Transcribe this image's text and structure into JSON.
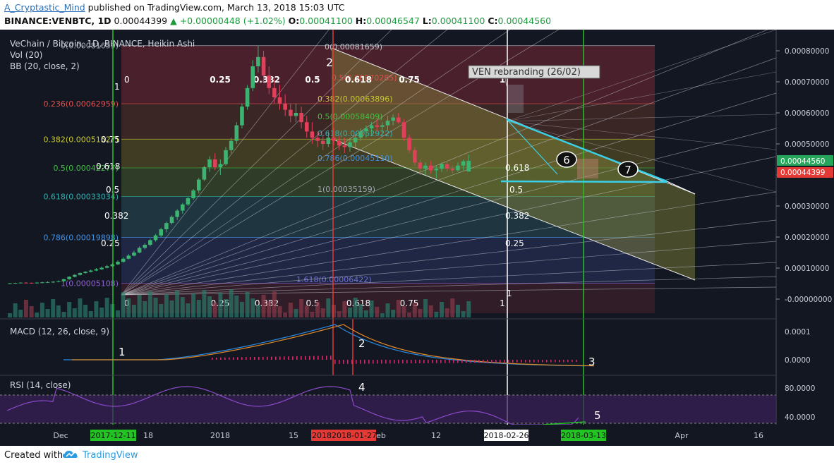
{
  "header": {
    "author": "A_Cryptastic_Mind",
    "published": "published on TradingView.com, March 13, 2018 15:03 UTC",
    "symbol_line": "BINANCE:VENBTC, 1D",
    "last": "0.00044399",
    "change": "+0.00000448 (+1.02%)",
    "o_label": "O:",
    "o": "0.00041100",
    "h_label": "H:",
    "h": "0.00046547",
    "l_label": "L:",
    "l": "0.00041100",
    "c_label": "C:",
    "c": "0.00044560"
  },
  "legend": {
    "title": "VeChain / Bitcoin, 1D, BINANCE, Heikin Ashi",
    "vol": "Vol (20)",
    "bb": "BB (20, close, 2)"
  },
  "price_axis": [
    "0.00080000",
    "0.00070000",
    "0.00060000",
    "0.00050000",
    "0.00040000",
    "0.00030000",
    "0.00020000",
    "0.00010000",
    "-0.00000000"
  ],
  "price_badges": {
    "close": "0.00044560",
    "last": "0.00044399"
  },
  "fib_retracement": [
    {
      "label": "0(0.00081659)",
      "value": 0.00081659
    },
    {
      "label": "0.236(0.00062959)",
      "value": 0.00062959
    },
    {
      "label": "0.382(0.00051527)",
      "value": 0.00051527
    },
    {
      "label": "0.5(0.00042277)",
      "value": 0.00042277
    },
    {
      "label": "0.618(0.00033034)",
      "value": 0.00033034
    },
    {
      "label": "0.786(0.00019898)",
      "value": 0.00019898
    },
    {
      "label": "1(0.00005108)",
      "value": 5.108e-05
    }
  ],
  "fib_channel": [
    {
      "label": "0(0.00081659)"
    },
    {
      "label": "0.5(0.00070285)"
    },
    {
      "label": "0.382(0.00063896)"
    },
    {
      "label": "0.5(0.00058409)"
    },
    {
      "label": "0.618(0.00052922)"
    },
    {
      "label": "0.786(0.00045110)"
    },
    {
      "label": "1(0.00035159)"
    },
    {
      "label": "1.618(0.00006422)"
    }
  ],
  "fan_labels": [
    "0.25",
    "0.382",
    "0.5",
    "0.618",
    "0.75",
    "1"
  ],
  "gann_labels": [
    "0.75",
    "0.618",
    "0.5",
    "0.382",
    "0.25",
    "1",
    "0.5",
    "0.618",
    "1"
  ],
  "annotation_box": "VEN rebranding (26/02)",
  "markers": [
    "1",
    "2",
    "3",
    "4",
    "5",
    "6",
    "7"
  ],
  "macd": {
    "title": "MACD (12, 26, close, 9)",
    "axis": [
      "0.0001",
      "0.0000"
    ]
  },
  "rsi": {
    "title": "RSI (14, close)",
    "axis": [
      "80.0000",
      "40.0000"
    ]
  },
  "time_axis": {
    "labels": [
      "Dec",
      "18",
      "2018",
      "15",
      "eb",
      "12",
      "Apr",
      "16"
    ],
    "highlight": [
      {
        "text": "2017-12-11",
        "color": "#22c322"
      },
      {
        "text": "2018",
        "color": "#e53935"
      },
      {
        "text": "2018-01-27",
        "color": "#e53935"
      },
      {
        "text": "2018-02-26",
        "color": "#ffffff"
      },
      {
        "text": "2018-03-13",
        "color": "#22c322"
      }
    ]
  },
  "footer": {
    "created": "Created with",
    "brand": "TradingView"
  },
  "chart_data": {
    "type": "candlestick",
    "style": "Heikin Ashi",
    "symbol": "VENBTC",
    "x_start": "2017-11-29",
    "x_end": "2018-03-13",
    "ylim": [
      -3e-05,
      0.00086
    ],
    "ohlc": [
      [
        5e-05,
        5.2e-05,
        5e-05,
        5.1e-05
      ],
      [
        5.1e-05,
        5.3e-05,
        5.05e-05,
        5.2e-05
      ],
      [
        5.2e-05,
        5.4e-05,
        5.1e-05,
        5.3e-05
      ],
      [
        5.3e-05,
        5.45e-05,
        5.15e-05,
        5.25e-05
      ],
      [
        5.25e-05,
        5.35e-05,
        5.1e-05,
        5.2e-05
      ],
      [
        5.2e-05,
        5.5e-05,
        5e-05,
        5.3e-05
      ],
      [
        5.3e-05,
        5.6e-05,
        5.1e-05,
        5.4e-05
      ],
      [
        5.4e-05,
        5.7e-05,
        5.2e-05,
        5.5e-05
      ],
      [
        5.5e-05,
        5.8e-05,
        5.2e-05,
        5.6e-05
      ],
      [
        5.6e-05,
        6e-05,
        5.4e-05,
        5.8e-05
      ],
      [
        5.8e-05,
        6.5e-05,
        5.6e-05,
        6.4e-05
      ],
      [
        6.4e-05,
        7.3e-05,
        6.2e-05,
        7.2e-05
      ],
      [
        7.2e-05,
        8e-05,
        7e-05,
        7.8e-05
      ],
      [
        7.8e-05,
        8.6e-05,
        7.6e-05,
        8.4e-05
      ],
      [
        8.4e-05,
        9e-05,
        8.2e-05,
        8.8e-05
      ],
      [
        8.8e-05,
        9.5e-05,
        8.6e-05,
        9.2e-05
      ],
      [
        9.2e-05,
        0.0001,
        9e-05,
        9.6e-05
      ],
      [
        9.6e-05,
        0.000105,
        9.4e-05,
        0.000101
      ],
      [
        0.000101,
        0.00011,
        9.9e-05,
        0.000106
      ],
      [
        0.000106,
        0.000116,
        0.000103,
        0.000112
      ],
      [
        0.000112,
        0.000125,
        0.00011,
        0.00012
      ],
      [
        0.00012,
        0.000135,
        0.000118,
        0.00013
      ],
      [
        0.00013,
        0.000145,
        0.000128,
        0.00014
      ],
      [
        0.00014,
        0.000156,
        0.000138,
        0.00015
      ],
      [
        0.00015,
        0.00017,
        0.000148,
        0.000165
      ],
      [
        0.000165,
        0.00018,
        0.00016,
        0.000175
      ],
      [
        0.000175,
        0.000195,
        0.00017,
        0.00019
      ],
      [
        0.00019,
        0.00021,
        0.000185,
        0.000205
      ],
      [
        0.000205,
        0.00023,
        0.0002,
        0.000225
      ],
      [
        0.000225,
        0.00025,
        0.000215,
        0.000245
      ],
      [
        0.000245,
        0.00027,
        0.00024,
        0.000265
      ],
      [
        0.000265,
        0.00029,
        0.000255,
        0.000285
      ],
      [
        0.000285,
        0.00031,
        0.000275,
        0.000305
      ],
      [
        0.000305,
        0.00033,
        0.0003,
        0.000325
      ],
      [
        0.000325,
        0.000355,
        0.00032,
        0.00035
      ],
      [
        0.00035,
        0.00039,
        0.00034,
        0.000385
      ],
      [
        0.000385,
        0.00043,
        0.00038,
        0.000425
      ],
      [
        0.000425,
        0.00046,
        0.00041,
        0.00045
      ],
      [
        0.00045,
        0.00047,
        0.000415,
        0.000425
      ],
      [
        0.000425,
        0.00045,
        0.0004,
        0.000435
      ],
      [
        0.000435,
        0.00049,
        0.00043,
        0.00048
      ],
      [
        0.00048,
        0.00052,
        0.00047,
        0.00051
      ],
      [
        0.00051,
        0.00057,
        0.0005,
        0.00056
      ],
      [
        0.00056,
        0.00063,
        0.00055,
        0.00062
      ],
      [
        0.00062,
        0.00069,
        0.00061,
        0.00068
      ],
      [
        0.00068,
        0.00077,
        0.00067,
        0.00075
      ],
      [
        0.00075,
        0.0008166,
        0.00073,
        0.00078
      ],
      [
        0.00078,
        0.0008,
        0.0007,
        0.00072
      ],
      [
        0.00072,
        0.00075,
        0.00066,
        0.00068
      ],
      [
        0.00068,
        0.00071,
        0.00063,
        0.00065
      ],
      [
        0.00065,
        0.00069,
        0.00061,
        0.00063
      ],
      [
        0.00063,
        0.00066,
        0.00059,
        0.00061
      ],
      [
        0.00061,
        0.00063,
        0.00057,
        0.00059
      ],
      [
        0.00059,
        0.00063,
        0.00057,
        0.0006
      ],
      [
        0.0006,
        0.00062,
        0.00055,
        0.00057
      ],
      [
        0.00057,
        0.00059,
        0.00052,
        0.00054
      ],
      [
        0.00054,
        0.00057,
        0.0005,
        0.00052
      ],
      [
        0.00052,
        0.00054,
        0.00049,
        0.00051
      ],
      [
        0.00051,
        0.00053,
        0.00048,
        0.0005
      ],
      [
        0.0005,
        0.00054,
        0.00049,
        0.00052
      ],
      [
        0.00052,
        0.00055,
        0.000495,
        0.00051
      ],
      [
        0.00051,
        0.000525,
        0.00048,
        0.000495
      ],
      [
        0.000495,
        0.00052,
        0.00047,
        0.00049
      ],
      [
        0.00049,
        0.00052,
        0.000475,
        0.000505
      ],
      [
        0.000505,
        0.00053,
        0.00049,
        0.00052
      ],
      [
        0.00052,
        0.00055,
        0.00051,
        0.00054
      ],
      [
        0.00054,
        0.00056,
        0.00052,
        0.00055
      ],
      [
        0.00055,
        0.00057,
        0.00053,
        0.00056
      ],
      [
        0.00056,
        0.00058,
        0.00054,
        0.000555
      ],
      [
        0.000555,
        0.00057,
        0.000535,
        0.00056
      ],
      [
        0.00056,
        0.00059,
        0.000545,
        0.000575
      ],
      [
        0.000575,
        0.000595,
        0.00056,
        0.000585
      ],
      [
        0.000585,
        0.0006,
        0.000565,
        0.00057
      ],
      [
        0.00057,
        0.00058,
        0.00051,
        0.00052
      ],
      [
        0.00052,
        0.00053,
        0.00047,
        0.00048
      ],
      [
        0.00048,
        0.00049,
        0.00043,
        0.00044
      ],
      [
        0.00044,
        0.00045,
        0.0004,
        0.00042
      ],
      [
        0.00042,
        0.00044,
        0.0004,
        0.00043
      ],
      [
        0.00043,
        0.000445,
        0.000405,
        0.000415
      ],
      [
        0.000415,
        0.00043,
        0.00039,
        0.00042
      ],
      [
        0.00042,
        0.00044,
        0.00041,
        0.000435
      ],
      [
        0.000435,
        0.000445,
        0.00041,
        0.00042
      ],
      [
        0.00042,
        0.00043,
        0.000405,
        0.000415
      ],
      [
        0.000415,
        0.00044,
        0.00041,
        0.00043
      ],
      [
        0.00043,
        0.00045,
        0.000415,
        0.000444
      ],
      [
        0.000411,
        0.0004655,
        0.000411,
        0.0004456
      ]
    ]
  }
}
